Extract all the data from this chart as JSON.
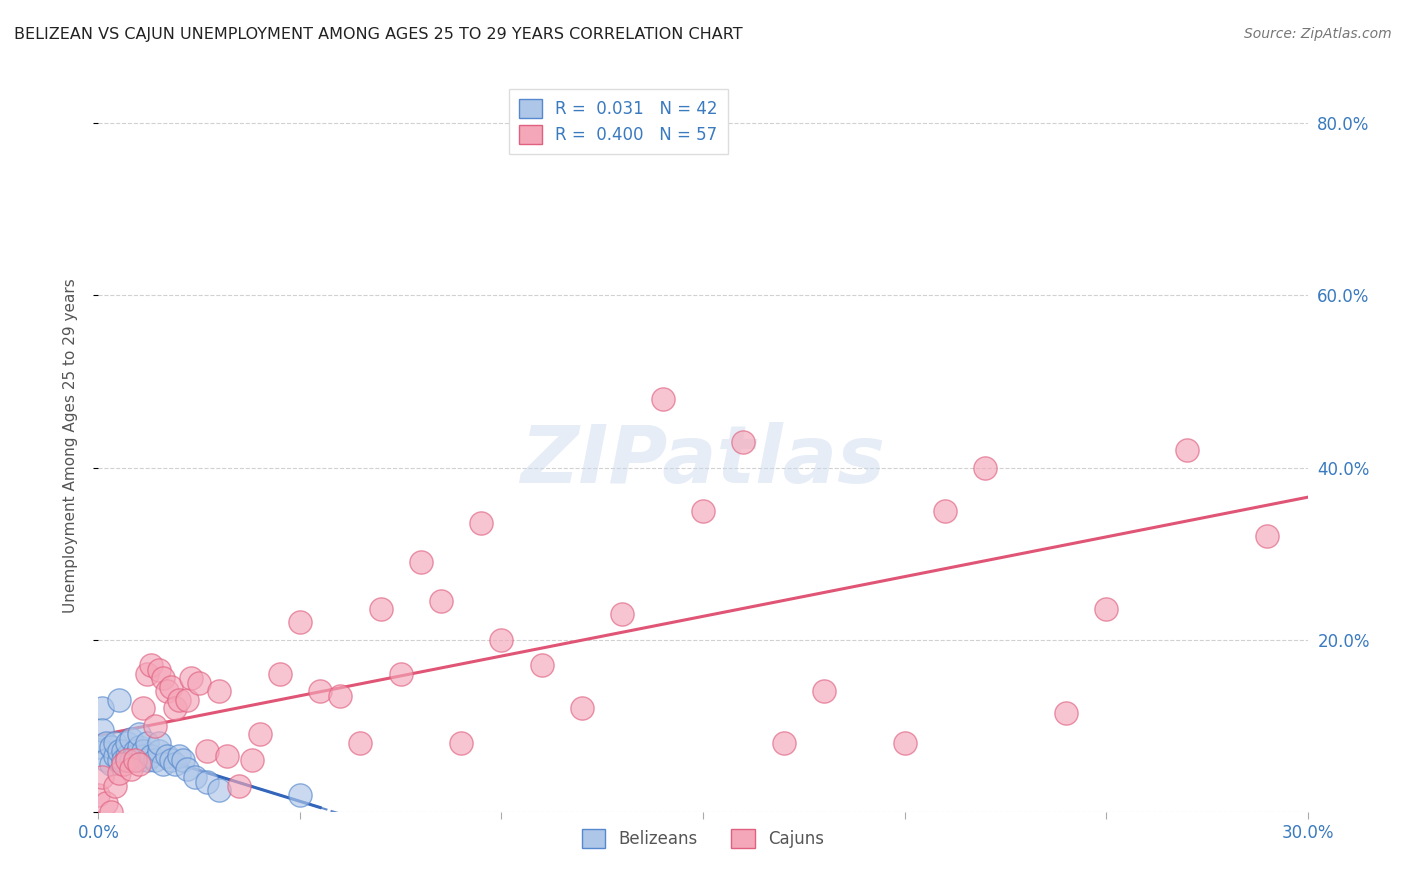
{
  "title": "BELIZEAN VS CAJUN UNEMPLOYMENT AMONG AGES 25 TO 29 YEARS CORRELATION CHART",
  "source": "Source: ZipAtlas.com",
  "ylabel": "Unemployment Among Ages 25 to 29 years",
  "xlim": [
    0.0,
    0.3
  ],
  "ylim": [
    0.0,
    0.85
  ],
  "yticks": [
    0.0,
    0.2,
    0.4,
    0.6,
    0.8
  ],
  "ytick_labels": [
    "",
    "20.0%",
    "40.0%",
    "60.0%",
    "80.0%"
  ],
  "belizean_color": "#aec6e8",
  "cajun_color": "#f4a7b9",
  "belizean_edge_color": "#5588cc",
  "cajun_edge_color": "#e06080",
  "belizean_line_color": "#3366bb",
  "cajun_line_color": "#e05575",
  "belizean_R": 0.031,
  "belizean_N": 42,
  "cajun_R": 0.4,
  "cajun_N": 57,
  "background_color": "#ffffff",
  "grid_color": "#cccccc",
  "belizean_x": [
    0.0,
    0.001,
    0.001,
    0.002,
    0.002,
    0.003,
    0.003,
    0.004,
    0.004,
    0.005,
    0.005,
    0.005,
    0.006,
    0.006,
    0.007,
    0.007,
    0.008,
    0.008,
    0.009,
    0.009,
    0.01,
    0.01,
    0.01,
    0.011,
    0.011,
    0.012,
    0.012,
    0.013,
    0.014,
    0.015,
    0.015,
    0.016,
    0.017,
    0.018,
    0.019,
    0.02,
    0.021,
    0.022,
    0.024,
    0.027,
    0.03,
    0.05
  ],
  "belizean_y": [
    0.075,
    0.12,
    0.095,
    0.08,
    0.06,
    0.055,
    0.075,
    0.065,
    0.08,
    0.06,
    0.07,
    0.13,
    0.07,
    0.06,
    0.065,
    0.08,
    0.06,
    0.085,
    0.07,
    0.065,
    0.06,
    0.075,
    0.09,
    0.065,
    0.07,
    0.06,
    0.08,
    0.065,
    0.06,
    0.07,
    0.08,
    0.055,
    0.065,
    0.06,
    0.055,
    0.065,
    0.06,
    0.05,
    0.04,
    0.035,
    0.025,
    0.02
  ],
  "cajun_x": [
    0.0,
    0.001,
    0.002,
    0.003,
    0.004,
    0.005,
    0.006,
    0.007,
    0.008,
    0.009,
    0.01,
    0.011,
    0.012,
    0.013,
    0.014,
    0.015,
    0.016,
    0.017,
    0.018,
    0.019,
    0.02,
    0.022,
    0.023,
    0.025,
    0.027,
    0.03,
    0.032,
    0.035,
    0.038,
    0.04,
    0.045,
    0.05,
    0.055,
    0.06,
    0.065,
    0.07,
    0.075,
    0.08,
    0.085,
    0.09,
    0.095,
    0.1,
    0.11,
    0.12,
    0.13,
    0.14,
    0.15,
    0.16,
    0.17,
    0.18,
    0.2,
    0.21,
    0.22,
    0.24,
    0.25,
    0.27,
    0.29
  ],
  "cajun_y": [
    0.02,
    0.04,
    0.01,
    0.0,
    0.03,
    0.045,
    0.055,
    0.06,
    0.05,
    0.06,
    0.055,
    0.12,
    0.16,
    0.17,
    0.1,
    0.165,
    0.155,
    0.14,
    0.145,
    0.12,
    0.13,
    0.13,
    0.155,
    0.15,
    0.07,
    0.14,
    0.065,
    0.03,
    0.06,
    0.09,
    0.16,
    0.22,
    0.14,
    0.135,
    0.08,
    0.235,
    0.16,
    0.29,
    0.245,
    0.08,
    0.335,
    0.2,
    0.17,
    0.12,
    0.23,
    0.48,
    0.35,
    0.43,
    0.08,
    0.14,
    0.08,
    0.35,
    0.4,
    0.115,
    0.235,
    0.42,
    0.32
  ]
}
